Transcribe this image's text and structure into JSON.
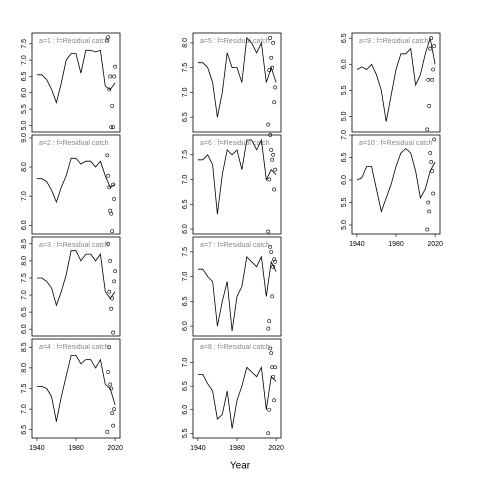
{
  "xlabel": "Year",
  "chart_data": [
    {
      "type": "line",
      "title": "a=1 : f=Residual catch",
      "x": [
        1940,
        1945,
        1950,
        1955,
        1960,
        1965,
        1970,
        1975,
        1980,
        1985,
        1990,
        1995,
        2000,
        2005,
        2010,
        2015,
        2020
      ],
      "values": [
        6.55,
        6.55,
        6.4,
        6.1,
        5.7,
        6.3,
        7.0,
        7.2,
        7.2,
        6.6,
        7.3,
        7.3,
        7.25,
        7.3,
        6.2,
        6.1,
        6.3
      ],
      "points": {
        "x": [
          2012,
          2013,
          2014,
          2015,
          2016,
          2017,
          2018,
          2019,
          2020
        ],
        "y": [
          7.6,
          7.7,
          6.1,
          6.5,
          4.95,
          5.6,
          4.95,
          6.5,
          6.8
        ]
      },
      "xlim": [
        1935,
        2025
      ],
      "ylim": [
        4.8,
        7.83
      ],
      "yticks": [
        {
          "value": 5,
          "label": "5.0"
        },
        5.5,
        {
          "value": 6,
          "label": "6.0"
        },
        6.5,
        {
          "value": 7,
          "label": "7.0"
        },
        7.5
      ]
    },
    {
      "type": "line",
      "title": "a=2 : f=Residual catch",
      "x": [
        1940,
        1945,
        1950,
        1955,
        1960,
        1965,
        1970,
        1975,
        1980,
        1985,
        1990,
        1995,
        2000,
        2005,
        2010,
        2015,
        2020
      ],
      "values": [
        7.6,
        7.6,
        7.5,
        7.2,
        6.8,
        7.3,
        7.7,
        8.3,
        8.3,
        8.1,
        8.2,
        8.2,
        8.0,
        8.2,
        7.7,
        7.3,
        7.4
      ],
      "points": {
        "x": [
          2012,
          2013,
          2014,
          2015,
          2016,
          2017,
          2018,
          2019
        ],
        "y": [
          8.4,
          7.7,
          7.3,
          6.5,
          6.4,
          5.8,
          7.4,
          6.9
        ]
      },
      "xlim": [
        1935,
        2025
      ],
      "ylim": [
        5.7,
        9.1
      ],
      "yticks": [
        {
          "value": 6,
          "label": "6.0"
        },
        {
          "value": 7,
          "label": "7.0"
        },
        {
          "value": 8,
          "label": "8.0"
        },
        {
          "value": 9,
          "label": "9.0"
        }
      ]
    },
    {
      "type": "line",
      "title": "a=3 : f=Residual catch",
      "x": [
        1940,
        1945,
        1950,
        1955,
        1960,
        1965,
        1970,
        1975,
        1980,
        1985,
        1990,
        1995,
        2000,
        2005,
        2010,
        2015,
        2020
      ],
      "values": [
        7.5,
        7.5,
        7.4,
        7.2,
        6.7,
        7.1,
        7.6,
        8.3,
        8.3,
        8.0,
        8.2,
        8.2,
        8.0,
        8.2,
        7.1,
        6.9,
        7.1
      ],
      "points": {
        "x": [
          2013,
          2014,
          2015,
          2016,
          2017,
          2018,
          2019,
          2020
        ],
        "y": [
          8.5,
          7.1,
          8.0,
          6.6,
          6.9,
          5.9,
          7.4,
          7.7
        ]
      },
      "xlim": [
        1935,
        2025
      ],
      "ylim": [
        5.8,
        8.7
      ],
      "yticks": [
        {
          "value": 6,
          "label": "6.0"
        },
        6.5,
        {
          "value": 7,
          "label": "7.0"
        },
        7.5,
        {
          "value": 8,
          "label": "8.0"
        },
        8.5
      ]
    },
    {
      "type": "line",
      "title": "a=4 : f=Residual catch",
      "x": [
        1940,
        1945,
        1950,
        1955,
        1960,
        1965,
        1970,
        1975,
        1980,
        1985,
        1990,
        1995,
        2000,
        2005,
        2010,
        2015,
        2020
      ],
      "values": [
        7.55,
        7.55,
        7.5,
        7.3,
        6.7,
        7.3,
        7.8,
        8.3,
        8.3,
        8.1,
        8.2,
        8.2,
        8.0,
        8.2,
        7.6,
        7.5,
        7.1
      ],
      "points": {
        "x": [
          2012,
          2013,
          2014,
          2015,
          2016,
          2017,
          2018,
          2019
        ],
        "y": [
          6.45,
          7.9,
          8.5,
          7.6,
          7.5,
          6.9,
          6.6,
          7.0
        ]
      },
      "xlim": [
        1935,
        2025
      ],
      "ylim": [
        6.3,
        8.7
      ],
      "yticks": [
        6.5,
        {
          "value": 7,
          "label": "7.0"
        },
        7.5,
        {
          "value": 8,
          "label": "8.0"
        },
        8.5
      ],
      "xticks": [
        1940,
        1980,
        2020
      ]
    },
    {
      "type": "line",
      "title": "a=5 : f=Residual catch",
      "x": [
        1940,
        1945,
        1950,
        1955,
        1960,
        1965,
        1970,
        1975,
        1980,
        1985,
        1990,
        1995,
        2000,
        2005,
        2010,
        2015,
        2020
      ],
      "values": [
        7.6,
        7.6,
        7.5,
        7.2,
        6.5,
        7.0,
        7.8,
        7.5,
        7.5,
        7.2,
        8.1,
        8.0,
        7.8,
        8.0,
        7.2,
        7.5,
        7.2
      ],
      "points": {
        "x": [
          2012,
          2013,
          2014,
          2015,
          2016,
          2017,
          2018,
          2019
        ],
        "y": [
          6.35,
          7.45,
          8.1,
          7.7,
          7.5,
          8.0,
          6.8,
          7.1
        ]
      },
      "xlim": [
        1935,
        2025
      ],
      "ylim": [
        6.2,
        8.2
      ],
      "yticks": [
        6.5,
        {
          "value": 7,
          "label": "7.0"
        },
        7.5,
        {
          "value": 8,
          "label": "8.0"
        }
      ]
    },
    {
      "type": "line",
      "title": "a=6 : f=Residual catch",
      "x": [
        1940,
        1945,
        1950,
        1955,
        1960,
        1965,
        1970,
        1975,
        1980,
        1985,
        1990,
        1995,
        2000,
        2005,
        2010,
        2015,
        2020
      ],
      "values": [
        7.4,
        7.4,
        7.5,
        7.3,
        6.3,
        7.1,
        7.6,
        7.5,
        7.6,
        7.2,
        7.8,
        7.8,
        7.6,
        7.8,
        7.0,
        7.2,
        7.1
      ],
      "points": {
        "x": [
          2012,
          2013,
          2014,
          2015,
          2016,
          2017,
          2018,
          2019
        ],
        "y": [
          5.95,
          7.0,
          7.9,
          7.6,
          7.4,
          7.5,
          6.8,
          7.2
        ]
      },
      "xlim": [
        1935,
        2025
      ],
      "ylim": [
        5.9,
        7.9
      ],
      "yticks": [
        {
          "value": 6,
          "label": "6.0"
        },
        6.5,
        {
          "value": 7,
          "label": "7.0"
        },
        7.5
      ]
    },
    {
      "type": "line",
      "title": "a=7 : f=Residual catch",
      "x": [
        1940,
        1945,
        1950,
        1955,
        1960,
        1965,
        1970,
        1975,
        1980,
        1985,
        1990,
        1995,
        2000,
        2005,
        2010,
        2015,
        2020
      ],
      "values": [
        7.15,
        7.15,
        7.0,
        6.9,
        6.0,
        6.5,
        6.9,
        5.9,
        6.6,
        6.8,
        7.4,
        7.3,
        7.2,
        7.4,
        6.6,
        7.3,
        7.1
      ],
      "points": {
        "x": [
          2012,
          2013,
          2014,
          2015,
          2016,
          2017,
          2018,
          2019
        ],
        "y": [
          5.95,
          6.1,
          7.6,
          7.5,
          6.6,
          7.2,
          7.35,
          7.3
        ]
      },
      "xlim": [
        1935,
        2025
      ],
      "ylim": [
        5.8,
        7.8
      ],
      "yticks": [
        {
          "value": 6,
          "label": "6.0"
        },
        6.5,
        {
          "value": 7,
          "label": "7.0"
        },
        7.5
      ]
    },
    {
      "type": "line",
      "title": "a=8 : f=Residual catch",
      "x": [
        1940,
        1945,
        1950,
        1955,
        1960,
        1965,
        1970,
        1975,
        1980,
        1985,
        1990,
        1995,
        2000,
        2005,
        2010,
        2015,
        2020
      ],
      "values": [
        6.75,
        6.75,
        6.55,
        6.4,
        5.8,
        5.9,
        6.4,
        5.6,
        6.2,
        6.5,
        6.9,
        6.8,
        6.7,
        6.9,
        6.0,
        6.7,
        6.6
      ],
      "points": {
        "x": [
          2012,
          2013,
          2014,
          2015,
          2016,
          2017,
          2018,
          2019
        ],
        "y": [
          5.5,
          6.0,
          7.3,
          7.2,
          6.9,
          6.7,
          6.2,
          6.9
        ]
      },
      "xlim": [
        1935,
        2025
      ],
      "ylim": [
        5.4,
        7.5
      ],
      "yticks": [
        5.5,
        {
          "value": 6,
          "label": "6.0"
        },
        6.5,
        {
          "value": 7,
          "label": "7.0"
        }
      ],
      "xticks": [
        1940,
        1980,
        2020
      ]
    },
    {
      "type": "line",
      "title": "a=9 : f=Residual catch",
      "x": [
        1940,
        1945,
        1950,
        1955,
        1960,
        1965,
        1970,
        1975,
        1980,
        1985,
        1990,
        1995,
        2000,
        2005,
        2010,
        2015,
        2020
      ],
      "values": [
        5.9,
        5.95,
        5.9,
        6.0,
        5.8,
        5.5,
        4.9,
        5.4,
        5.9,
        6.2,
        6.2,
        6.3,
        5.6,
        5.8,
        6.2,
        6.5,
        6.0
      ],
      "points": {
        "x": [
          2012,
          2013,
          2014,
          2015,
          2016,
          2017,
          2018,
          2019
        ],
        "y": [
          4.75,
          5.7,
          5.2,
          6.3,
          6.5,
          5.7,
          5.9,
          6.35
        ]
      },
      "xlim": [
        1935,
        2025
      ],
      "ylim": [
        4.7,
        6.6
      ],
      "yticks": [
        {
          "value": 5,
          "label": "5.0"
        },
        5.5,
        {
          "value": 6,
          "label": "6.0"
        },
        6.5
      ]
    },
    {
      "type": "line",
      "title": "a=10 : f=Residual catch",
      "x": [
        1940,
        1945,
        1950,
        1955,
        1960,
        1965,
        1970,
        1975,
        1980,
        1985,
        1990,
        1995,
        2000,
        2005,
        2010,
        2015,
        2020
      ],
      "values": [
        6.0,
        6.05,
        6.3,
        6.3,
        5.8,
        5.3,
        5.6,
        5.9,
        6.3,
        6.6,
        6.7,
        6.6,
        6.2,
        5.6,
        5.8,
        6.2,
        6.4
      ],
      "points": {
        "x": [
          2012,
          2013,
          2014,
          2015,
          2016,
          2017,
          2018,
          2019
        ],
        "y": [
          4.9,
          5.5,
          5.3,
          6.6,
          6.4,
          6.2,
          5.7,
          6.9
        ]
      },
      "xlim": [
        1935,
        2025
      ],
      "ylim": [
        4.8,
        7.0
      ],
      "yticks": [
        {
          "value": 5,
          "label": "5.0"
        },
        5.5,
        {
          "value": 6,
          "label": "6.0"
        },
        6.5,
        {
          "value": 7,
          "label": "7.0"
        }
      ],
      "xticks": [
        1940,
        1980,
        2020
      ]
    }
  ]
}
